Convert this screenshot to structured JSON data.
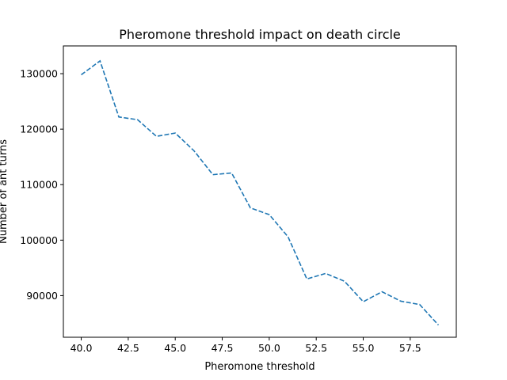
{
  "chart_data": {
    "type": "line",
    "title": "Pheromone threshold impact on death circle",
    "xlabel": "Pheromone threshold",
    "ylabel": "Number of ant turns",
    "xlim": [
      39.05,
      59.95
    ],
    "ylim": [
      82500,
      135000
    ],
    "x_ticks": [
      40.0,
      42.5,
      45.0,
      47.5,
      50.0,
      52.5,
      55.0,
      57.5
    ],
    "x_tick_labels": [
      "40.0",
      "42.5",
      "45.0",
      "47.5",
      "50.0",
      "52.5",
      "55.0",
      "57.5"
    ],
    "y_ticks": [
      90000,
      100000,
      110000,
      120000,
      130000
    ],
    "y_tick_labels": [
      "90000",
      "100000",
      "110000",
      "120000",
      "130000"
    ],
    "grid": false,
    "series": [
      {
        "color": "#1f77b4",
        "line_style": "dashed",
        "x": [
          40,
          41,
          42,
          43,
          44,
          45,
          46,
          47,
          48,
          49,
          50,
          51,
          52,
          53,
          54,
          55,
          56,
          57,
          58,
          59
        ],
        "values": [
          129800,
          132300,
          122200,
          121700,
          118700,
          119300,
          116100,
          111800,
          112100,
          105800,
          104600,
          100600,
          93000,
          94000,
          92600,
          88900,
          90700,
          89000,
          88400,
          84700
        ]
      }
    ]
  }
}
